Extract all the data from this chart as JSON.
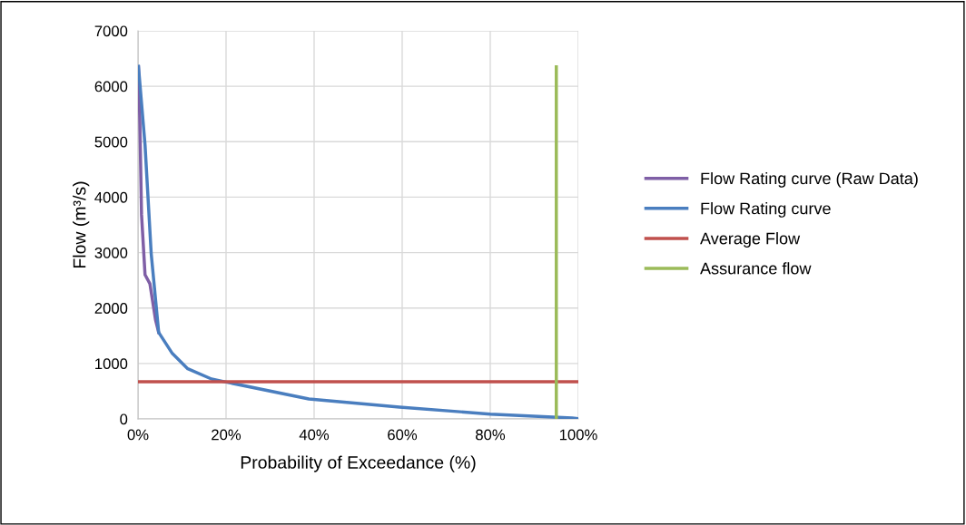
{
  "chart_data": {
    "type": "line",
    "xlabel": "Probability of Exceedance (%)",
    "ylabel": "Flow (m³/s)",
    "xlim": [
      0,
      100
    ],
    "ylim": [
      0,
      7000
    ],
    "xticks": [
      {
        "value": 0,
        "label": "0%"
      },
      {
        "value": 20,
        "label": "20%"
      },
      {
        "value": 40,
        "label": "40%"
      },
      {
        "value": 60,
        "label": "60%"
      },
      {
        "value": 80,
        "label": "80%"
      },
      {
        "value": 100,
        "label": "100%"
      }
    ],
    "yticks": [
      0,
      1000,
      2000,
      3000,
      4000,
      5000,
      6000,
      7000
    ],
    "grid": true,
    "legend": "right",
    "marker": "none",
    "line_style": "solid",
    "series": [
      {
        "name": "Flow Rating curve (Raw Data)",
        "color": "#7f5fa6",
        "x": [
          0.1,
          0.4,
          0.8,
          1.6,
          2.7,
          4.0,
          4.7
        ],
        "values": [
          6350,
          5430,
          3690,
          2600,
          2440,
          1780,
          1560
        ]
      },
      {
        "name": "Flow Rating curve",
        "color": "#4a7ebf",
        "x": [
          0.1,
          1.6,
          3.0,
          4.7,
          7.8,
          11.3,
          16.7,
          20,
          38.8,
          59.4,
          80,
          98.6,
          100
        ],
        "values": [
          6360,
          4940,
          2980,
          1560,
          1180,
          905,
          720,
          665,
          360,
          213,
          87,
          16,
          5
        ]
      },
      {
        "name": "Average Flow",
        "color": "#c0504d",
        "x": [
          0,
          100
        ],
        "values": [
          670,
          670
        ]
      },
      {
        "name": "Assurance flow",
        "color": "#9bbb59",
        "x": [
          95,
          95
        ],
        "values": [
          0,
          6350
        ]
      }
    ]
  }
}
